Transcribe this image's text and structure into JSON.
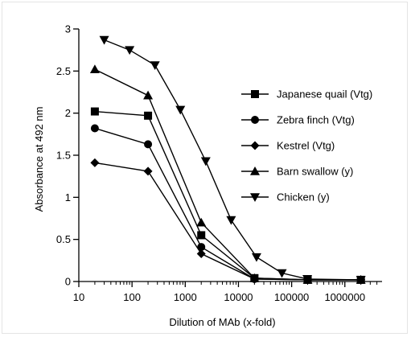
{
  "chart_data": {
    "type": "line",
    "title": "",
    "xlabel": "Dilution of MAb (x-fold)",
    "ylabel": "Absorbance at  492 nm",
    "xscale": "log",
    "xlim": [
      10,
      5000000
    ],
    "ylim": [
      0,
      3
    ],
    "xticks": [
      10,
      100,
      1000,
      10000,
      100000,
      1000000
    ],
    "xtick_labels": [
      "10",
      "100",
      "1000",
      "10000",
      "100000",
      "1000000"
    ],
    "yticks": [
      0,
      0.5,
      1,
      1.5,
      2,
      2.5,
      3
    ],
    "ytick_labels": [
      "0",
      "0.5",
      "1",
      "1.5",
      "2",
      "2.5",
      "3"
    ],
    "grid": false,
    "legend_position": "right",
    "series": [
      {
        "name": "Japanese quail (Vtg)",
        "marker": "square",
        "points": [
          [
            20,
            2.02
          ],
          [
            200,
            1.97
          ],
          [
            2000,
            0.55
          ],
          [
            20000,
            0.04
          ],
          [
            200000,
            0.02
          ],
          [
            2000000,
            0.02
          ]
        ]
      },
      {
        "name": "Zebra finch (Vtg)",
        "marker": "circle",
        "points": [
          [
            20,
            1.82
          ],
          [
            200,
            1.63
          ],
          [
            2000,
            0.41
          ],
          [
            20000,
            0.03
          ],
          [
            200000,
            0.02
          ],
          [
            2000000,
            0.02
          ]
        ]
      },
      {
        "name": "Kestrel (Vtg)",
        "marker": "diamond",
        "points": [
          [
            20,
            1.41
          ],
          [
            200,
            1.31
          ],
          [
            2000,
            0.33
          ],
          [
            20000,
            0.03
          ],
          [
            200000,
            0.02
          ],
          [
            2000000,
            0.02
          ]
        ]
      },
      {
        "name": "Barn swallow (y)",
        "marker": "triangle-up",
        "points": [
          [
            20,
            2.52
          ],
          [
            200,
            2.21
          ],
          [
            2000,
            0.7
          ],
          [
            20000,
            0.04
          ],
          [
            200000,
            0.02
          ],
          [
            2000000,
            0.02
          ]
        ]
      },
      {
        "name": "Chicken (y)",
        "marker": "triangle-down",
        "points": [
          [
            30,
            2.87
          ],
          [
            90,
            2.75
          ],
          [
            270,
            2.57
          ],
          [
            810,
            2.04
          ],
          [
            2430,
            1.43
          ],
          [
            7290,
            0.73
          ],
          [
            21870,
            0.29
          ],
          [
            65610,
            0.1
          ],
          [
            196830,
            0.03
          ],
          [
            2000000,
            0.02
          ]
        ]
      }
    ]
  }
}
